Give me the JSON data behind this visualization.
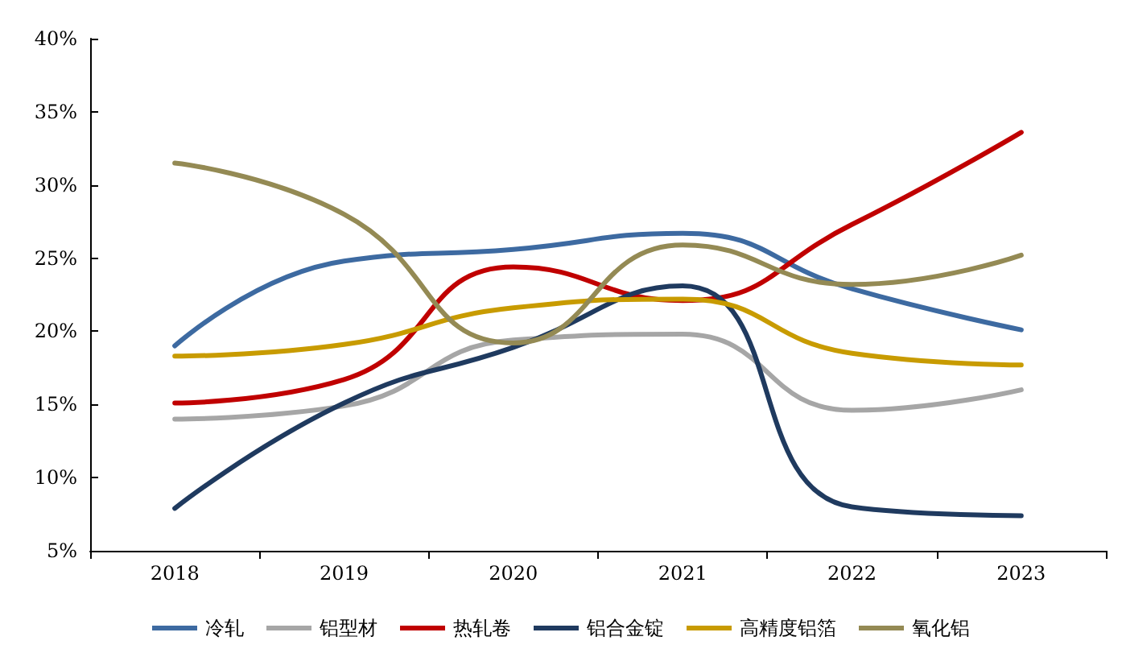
{
  "chart_data": {
    "type": "line",
    "categories": [
      "2018",
      "2019",
      "2020",
      "2021",
      "2022",
      "2023"
    ],
    "series": [
      {
        "name": "冷轧",
        "color": "#3d6aa1",
        "values": [
          19.0,
          24.8,
          25.6,
          26.7,
          22.9,
          20.1
        ]
      },
      {
        "name": "铝型材",
        "color": "#a6a6a6",
        "values": [
          14.0,
          14.9,
          19.4,
          19.8,
          14.6,
          16.0
        ]
      },
      {
        "name": "热轧卷",
        "color": "#c00000",
        "values": [
          15.1,
          16.7,
          24.4,
          22.1,
          27.3,
          33.6
        ]
      },
      {
        "name": "铝合金锭",
        "color": "#1f3a5f",
        "values": [
          7.9,
          15.1,
          18.9,
          23.1,
          8.0,
          7.4
        ]
      },
      {
        "name": "高精度铝箔",
        "color": "#c89b00",
        "values": [
          18.3,
          19.1,
          21.6,
          22.2,
          18.5,
          17.7
        ]
      },
      {
        "name": "氧化铝",
        "color": "#948a54",
        "values": [
          31.5,
          28.0,
          19.2,
          25.9,
          23.2,
          25.2
        ]
      }
    ],
    "ylim": [
      5,
      40
    ],
    "yticks": [
      {
        "value": 5,
        "label": "5%"
      },
      {
        "value": 10,
        "label": "10%"
      },
      {
        "value": 15,
        "label": "15%"
      },
      {
        "value": 20,
        "label": "20%"
      },
      {
        "value": 25,
        "label": "25%"
      },
      {
        "value": 30,
        "label": "30%"
      },
      {
        "value": 35,
        "label": "35%"
      },
      {
        "value": 40,
        "label": "40%"
      }
    ],
    "grid": false,
    "legend": "bottom",
    "marker": "none",
    "line_style": "solid"
  }
}
